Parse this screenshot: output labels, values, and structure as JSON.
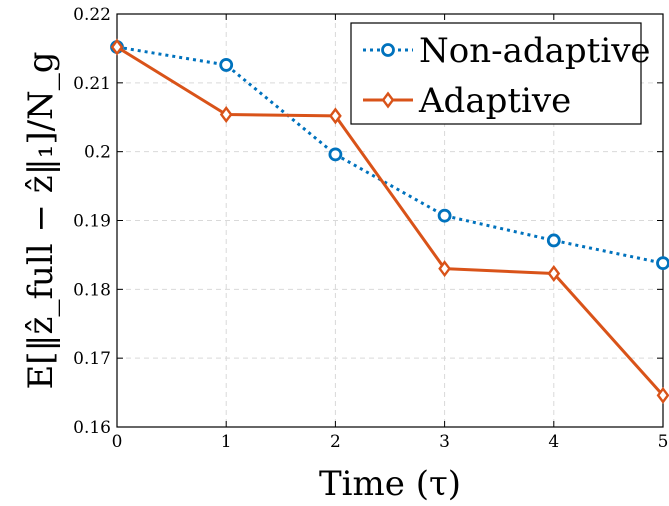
{
  "chart_data": {
    "type": "line",
    "xlabel": "Time (τ)",
    "ylabel": "E[‖ẑ_full − ẑ‖₁]/N_g",
    "xlim": [
      0,
      5
    ],
    "ylim": [
      0.16,
      0.22
    ],
    "x_ticks": [
      "0",
      "1",
      "2",
      "3",
      "4",
      "5"
    ],
    "y_ticks": [
      "0.16",
      "0.17",
      "0.18",
      "0.19",
      "0.2",
      "0.21",
      "0.22"
    ],
    "grid": true,
    "legend_position": "top-right",
    "x": [
      0,
      1,
      2,
      3,
      4,
      5
    ],
    "series": [
      {
        "name": "Non-adaptive",
        "color": "#0072BD",
        "line_style": "dotted",
        "marker": "circle",
        "values": [
          0.2152,
          0.2126,
          0.1996,
          0.1907,
          0.1871,
          0.1838
        ]
      },
      {
        "name": "Adaptive",
        "color": "#D95319",
        "line_style": "solid",
        "marker": "diamond",
        "values": [
          0.2152,
          0.2054,
          0.2052,
          0.183,
          0.1823,
          0.1646
        ]
      }
    ]
  }
}
